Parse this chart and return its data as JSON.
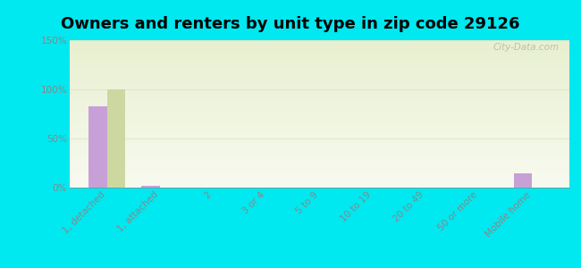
{
  "title": "Owners and renters by unit type in zip code 29126",
  "categories": [
    "1, detached",
    "1, attached",
    "2",
    "3 or 4",
    "5 to 9",
    "10 to 19",
    "20 to 49",
    "50 or more",
    "Mobile home"
  ],
  "owner_values": [
    83,
    2,
    0,
    0,
    0,
    0,
    0,
    0,
    15
  ],
  "renter_values": [
    100,
    0,
    0,
    0,
    0,
    0,
    0,
    0,
    0
  ],
  "owner_color": "#c8a0d8",
  "renter_color": "#ccd8a0",
  "background_color": "#00e8f0",
  "plot_bg_top": "#e8f0d0",
  "plot_bg_bottom": "#f8faf0",
  "ylim": [
    0,
    150
  ],
  "yticks": [
    0,
    50,
    100,
    150
  ],
  "ytick_labels": [
    "0%",
    "50%",
    "100%",
    "150%"
  ],
  "bar_width": 0.35,
  "watermark": "City-Data.com",
  "title_fontsize": 13,
  "tick_fontsize": 7.5,
  "legend_fontsize": 9,
  "grid_color": "#e0e8c8",
  "tick_color": "#888888"
}
